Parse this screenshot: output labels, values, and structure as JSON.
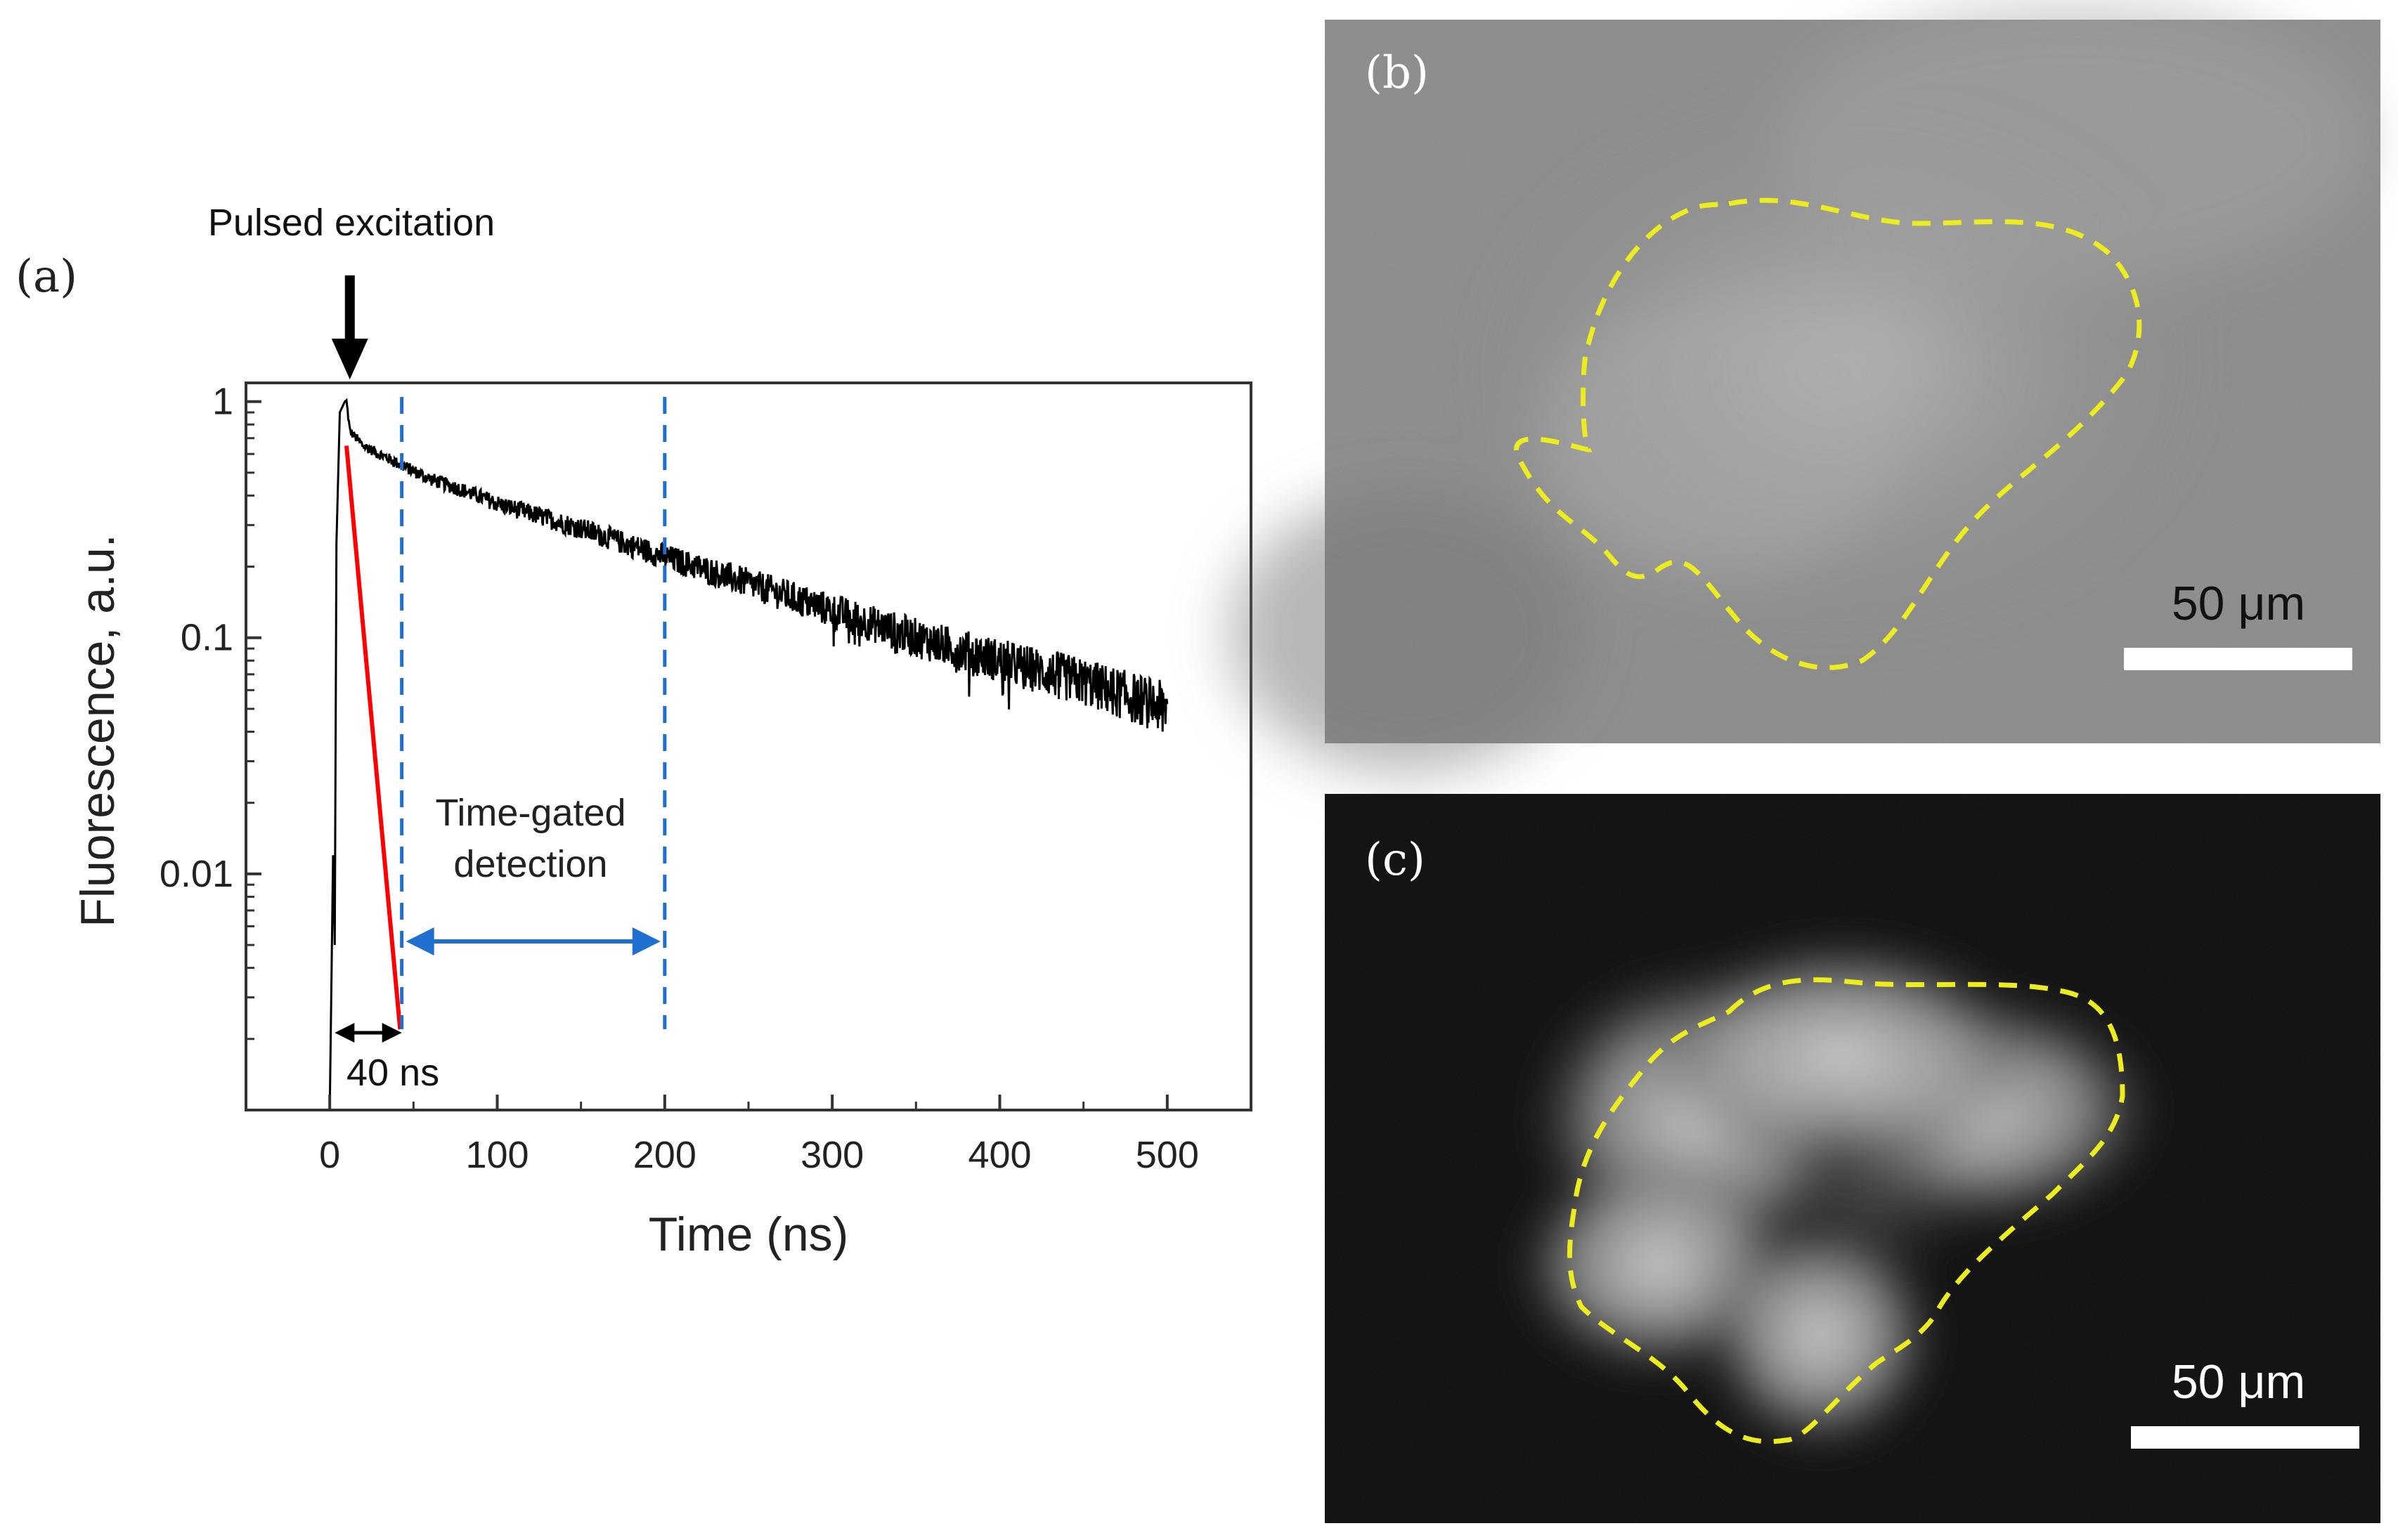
{
  "panel_labels": {
    "a": "(a)",
    "b": "(b)",
    "c": "(c)"
  },
  "chart_data": {
    "type": "line",
    "xlabel": "Time (ns)",
    "ylabel": "Fluorescence, a.u.",
    "y_scale": "log",
    "xlim": [
      -50,
      550
    ],
    "ylim": [
      0.001,
      1.2
    ],
    "x_ticks": [
      0,
      100,
      200,
      300,
      400,
      500
    ],
    "x_tick_labels": [
      "0",
      "100",
      "200",
      "300",
      "400",
      "500"
    ],
    "y_ticks": [
      1,
      0.1,
      0.01
    ],
    "y_tick_labels": [
      "1",
      "0.1",
      "0.01"
    ],
    "grid": false,
    "series": [
      {
        "color": "#000000",
        "x": [
          0,
          2,
          4,
          6,
          8,
          10,
          12,
          20,
          40,
          60,
          80,
          100,
          150,
          200,
          250,
          300,
          350,
          400,
          450,
          500
        ],
        "y": [
          0.001,
          0.003,
          0.012,
          0.2,
          0.8,
          1.0,
          0.75,
          0.65,
          0.55,
          0.47,
          0.42,
          0.37,
          0.29,
          0.22,
          0.17,
          0.13,
          0.1,
          0.08,
          0.065,
          0.05
        ],
        "noise": "log-noise increasing with time"
      },
      {
        "color": "#ff0000",
        "x": [
          10,
          42
        ],
        "y": [
          0.65,
          0.0022
        ]
      }
    ],
    "annotations": {
      "pulsed_excitation": {
        "text": "Pulsed excitation",
        "x": 12,
        "arrow_color": "#000000"
      },
      "gate_lines": {
        "x": [
          43,
          200
        ],
        "color": "#1f6fd0",
        "style": "dashed"
      },
      "gate_label": {
        "line1": "Time-gated",
        "line2": "detection"
      },
      "delay_label": {
        "text": "40 ns",
        "x_start": 3,
        "x_end": 43
      }
    }
  },
  "micrographs": {
    "b": {
      "scale_bar_label": "50 μm",
      "background": "#8c8c8c",
      "outline_color": "#ecec1e"
    },
    "c": {
      "scale_bar_label": "50 μm",
      "background": "#0c0c0c",
      "outline_color": "#ecec1e"
    }
  }
}
